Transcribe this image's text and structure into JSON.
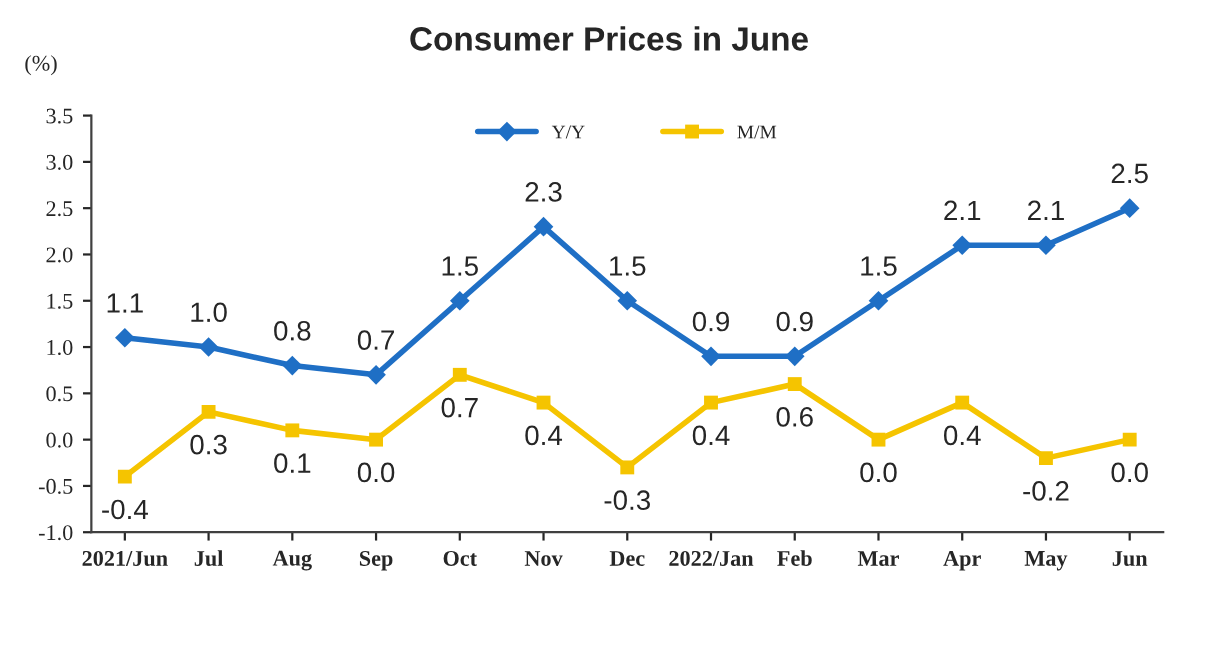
{
  "chart_data": {
    "type": "line",
    "title": "Consumer Prices in June",
    "ylabel": "(%)",
    "categories": [
      "2021/Jun",
      "Jul",
      "Aug",
      "Sep",
      "Oct",
      "Nov",
      "Dec",
      "2022/Jan",
      "Feb",
      "Mar",
      "Apr",
      "May",
      "Jun"
    ],
    "series": [
      {
        "name": "Y/Y",
        "color": "#1f6fc5",
        "marker": "diamond",
        "values": [
          1.1,
          1.0,
          0.8,
          0.7,
          1.5,
          2.3,
          1.5,
          0.9,
          0.9,
          1.5,
          2.1,
          2.1,
          2.5
        ],
        "value_labels": [
          "1.1",
          "1.0",
          "0.8",
          "0.7",
          "1.5",
          "2.3",
          "1.5",
          "0.9",
          "0.9",
          "1.5",
          "2.1",
          "2.1",
          "2.5"
        ]
      },
      {
        "name": "M/M",
        "color": "#f5c400",
        "marker": "square",
        "values": [
          -0.4,
          0.3,
          0.1,
          0.0,
          0.7,
          0.4,
          -0.3,
          0.4,
          0.6,
          0.0,
          0.4,
          -0.2,
          0.0
        ],
        "value_labels": [
          "-0.4",
          "0.3",
          "0.1",
          "0.0",
          "0.7",
          "0.4",
          "-0.3",
          "0.4",
          "0.6",
          "0.0",
          "0.4",
          "-0.2",
          "0.0"
        ]
      }
    ],
    "ylim": [
      -1.0,
      3.5
    ],
    "yticks": [
      {
        "value": -1.0,
        "label": "-1.0"
      },
      {
        "value": -0.5,
        "label": "-0.5"
      },
      {
        "value": 0.0,
        "label": "0.0"
      },
      {
        "value": 0.5,
        "label": "0.5"
      },
      {
        "value": 1.0,
        "label": "1.0"
      },
      {
        "value": 1.5,
        "label": "1.5"
      },
      {
        "value": 2.0,
        "label": "2.0"
      },
      {
        "value": 2.5,
        "label": "2.5"
      },
      {
        "value": 3.0,
        "label": "3.0"
      },
      {
        "value": 3.5,
        "label": "3.5"
      }
    ],
    "grid": false,
    "legend": "top",
    "line_style": "solid"
  }
}
